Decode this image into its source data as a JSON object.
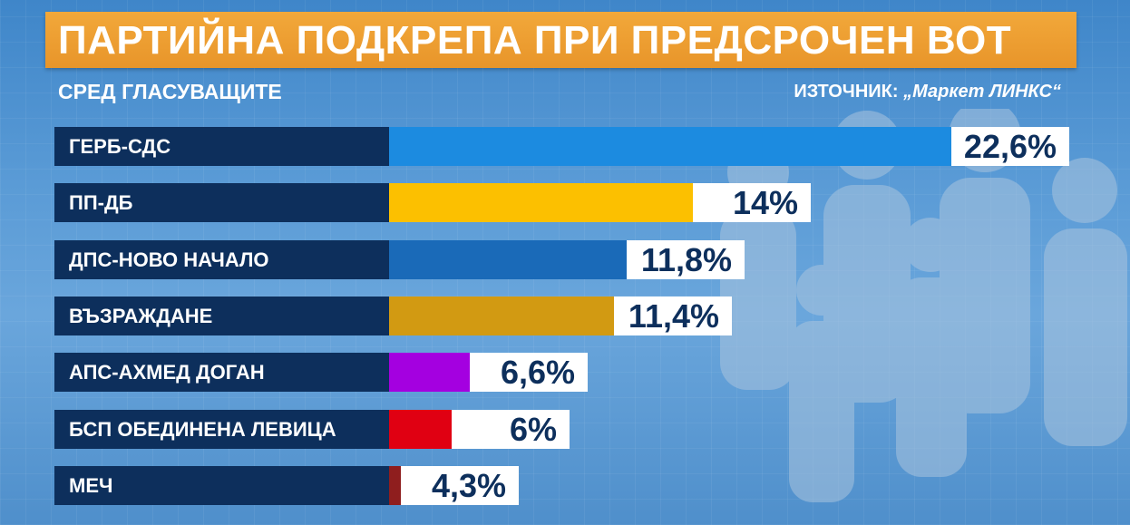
{
  "title": "ПАРТИЙНА ПОДКРЕПА ПРИ ПРЕДСРОЧЕН ВОТ",
  "subtitle": "СРЕД ГЛАСУВАЩИТЕ",
  "source": {
    "prefix": "ИЗТОЧНИК: ",
    "name": "„Маркет ЛИНКС“"
  },
  "chart_data": {
    "type": "bar",
    "orientation": "horizontal",
    "categories": [
      "ГЕРБ-СДС",
      "ПП-ДБ",
      "ДПС-НОВО НАЧАЛО",
      "ВЪЗРАЖДАНЕ",
      "АПС-АХМЕД ДОГАН",
      "БСП ОБЕДИНЕНА ЛЕВИЦА",
      "МЕЧ"
    ],
    "values": [
      22.6,
      14,
      11.8,
      11.4,
      6.6,
      6,
      4.3
    ],
    "value_labels": [
      "22,6%",
      "14%",
      "11,8%",
      "11,4%",
      "6,6%",
      "6%",
      "4,3%"
    ],
    "colors": [
      "#1c8be0",
      "#fcc000",
      "#1a6ab8",
      "#d29a12",
      "#a400e0",
      "#e00012",
      "#8f1e1e"
    ],
    "title": "ПАРТИЙНА ПОДКРЕПА ПРИ ПРЕДСРОЧЕН ВОТ",
    "subtitle": "СРЕД ГЛАСУВАЩИТЕ",
    "xlim": [
      0,
      22.6
    ],
    "grid": false,
    "legend": "none"
  }
}
